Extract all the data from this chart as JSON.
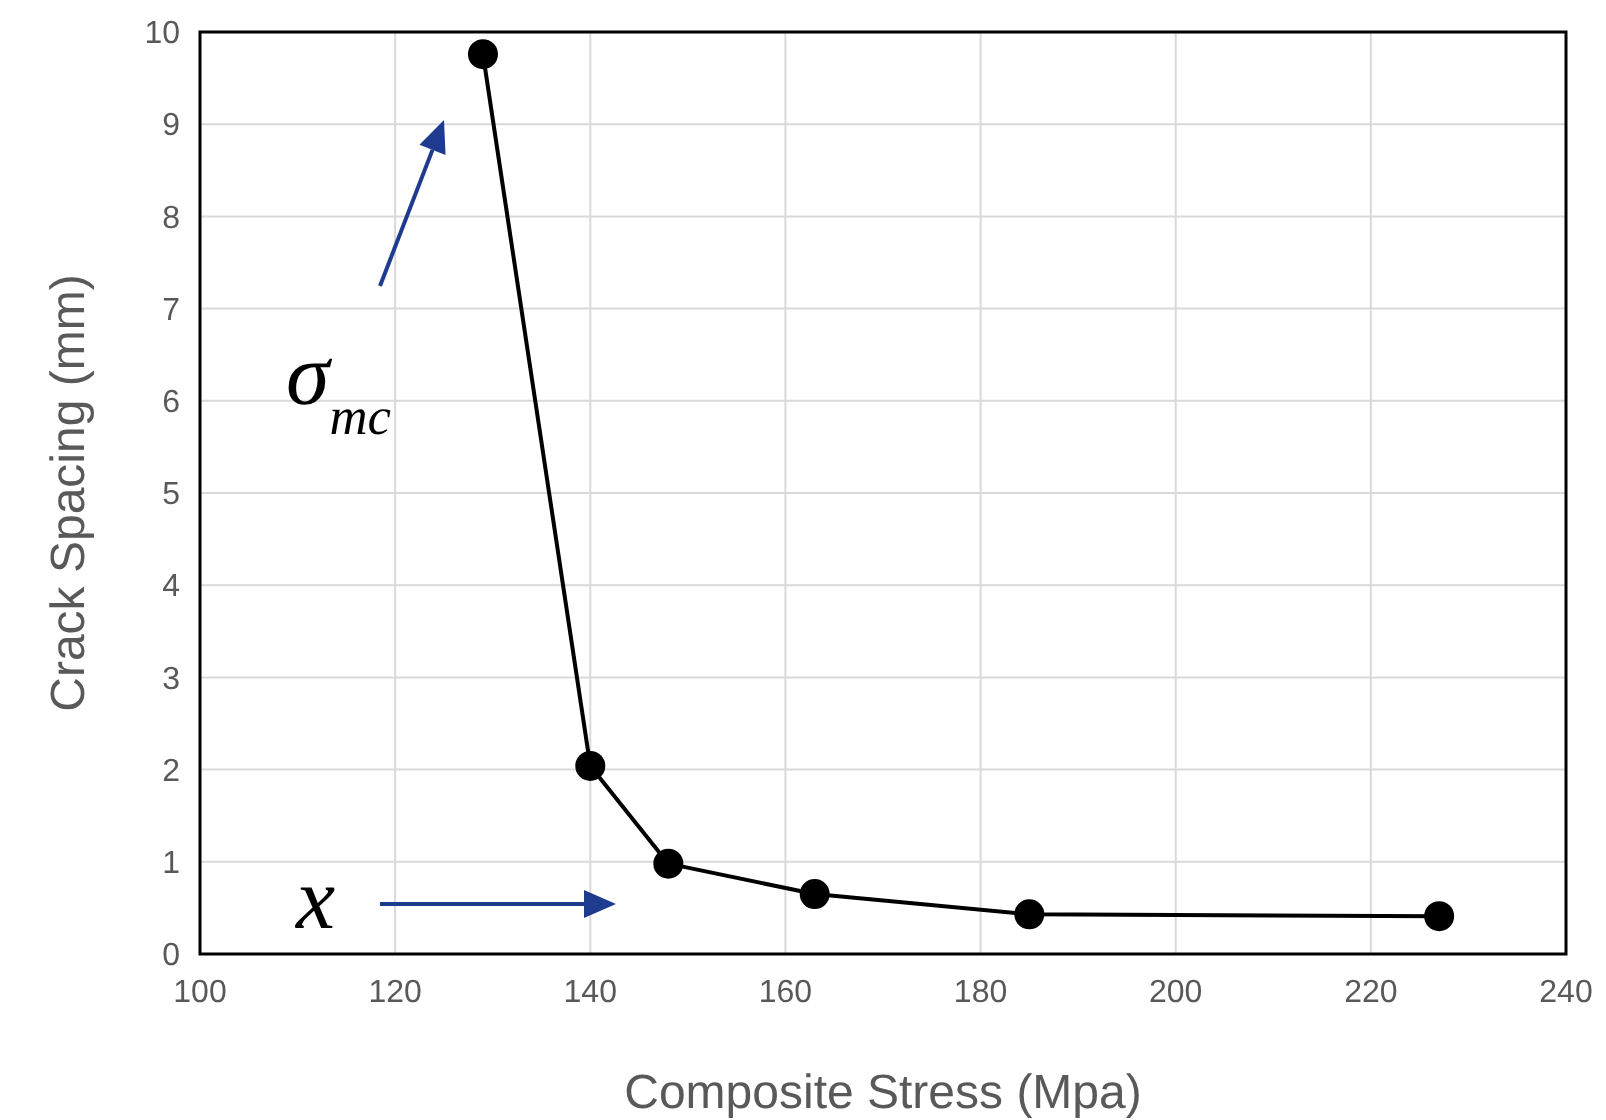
{
  "chart_data": {
    "type": "line",
    "xlabel": "Composite Stress (Mpa)",
    "ylabel": "Crack Spacing (mm)",
    "x": [
      129,
      140,
      148,
      163,
      185,
      227
    ],
    "series": [
      {
        "color": "#000000",
        "values": [
          9.76,
          2.04,
          0.98,
          0.65,
          0.43,
          0.41
        ]
      }
    ],
    "xlim": [
      100,
      240
    ],
    "xticks": [
      100,
      120,
      140,
      160,
      180,
      200,
      220,
      240
    ],
    "ylim": [
      0,
      10
    ],
    "yticks": [
      0,
      1,
      2,
      3,
      4,
      5,
      6,
      7,
      8,
      9,
      10
    ],
    "grid": true,
    "marker": "circle",
    "line_style": "solid",
    "annotations": [
      "σ$_{mc}$",
      "x"
    ]
  }
}
